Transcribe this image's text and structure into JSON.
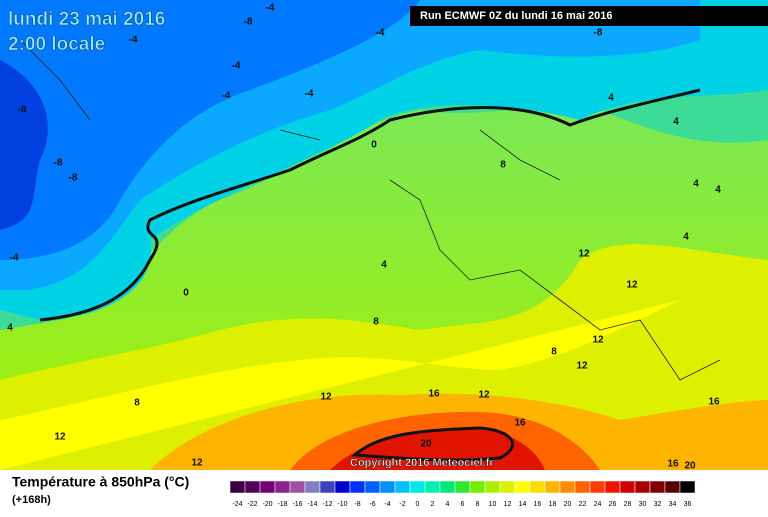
{
  "header": {
    "title": "lundi 23 mai 2016",
    "subtitle": "2:00 locale",
    "run": "Run ECMWF 0Z du lundi 16 mai 2016"
  },
  "copyright": "Copyright 2016 Meteociel.fr",
  "footer": {
    "title": "Température à 850hPa (°C)",
    "lead": "(+168h)"
  },
  "scale": {
    "values": [
      -24,
      -22,
      -20,
      -18,
      -16,
      -14,
      -12,
      -10,
      -8,
      -6,
      -4,
      -2,
      0,
      2,
      4,
      6,
      8,
      10,
      12,
      14,
      16,
      18,
      20,
      22,
      24,
      26,
      28,
      30,
      32,
      34,
      36
    ],
    "colors": [
      "#3a0040",
      "#55005a",
      "#730073",
      "#8c208c",
      "#a050a0",
      "#8080c0",
      "#4040b8",
      "#0000d0",
      "#0030ff",
      "#0060ff",
      "#0090ff",
      "#00c0ff",
      "#00e8e8",
      "#00f0b0",
      "#00e878",
      "#30e830",
      "#70f000",
      "#a8f000",
      "#dcf000",
      "#ffff00",
      "#ffdc00",
      "#ffb400",
      "#ff8c00",
      "#ff6400",
      "#ff3c00",
      "#f01400",
      "#d00000",
      "#a80000",
      "#800000",
      "#580000",
      "#000000"
    ]
  },
  "contour_labels": [
    -8,
    -4,
    -4,
    -8,
    -4,
    -4,
    -4,
    -4,
    -8,
    -8,
    -8,
    -4,
    0,
    0,
    4,
    4,
    4,
    4,
    4,
    4,
    8,
    8,
    8,
    8,
    12,
    12,
    12,
    12,
    12,
    12,
    12,
    12,
    16,
    16,
    16,
    16,
    20,
    20,
    4
  ]
}
